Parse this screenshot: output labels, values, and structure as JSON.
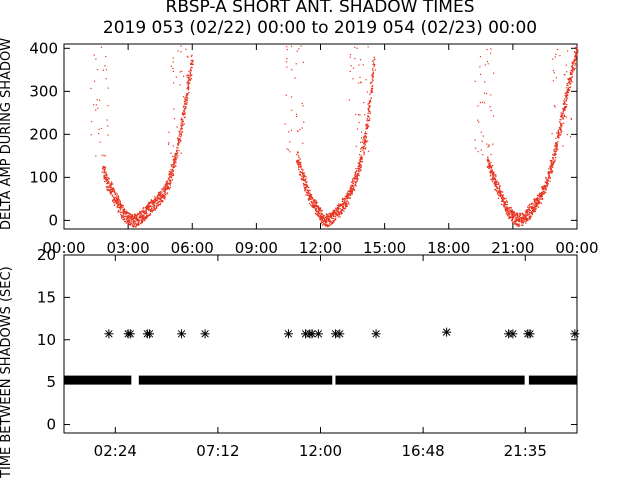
{
  "title": "RBSP-A SHORT ANT. SHADOW TIMES",
  "subtitle": "2019 053 (02/22) 00:00 to 2019 054 (02/23) 00:00",
  "colors": {
    "trace": "#e8321e",
    "axes": "#000000",
    "background": "#ffffff"
  },
  "chart_data": [
    {
      "type": "scatter",
      "ylabel": "DELTA AMP DURING SHADOW",
      "ylim": [
        -20,
        410
      ],
      "xlim": [
        0,
        24
      ],
      "x_tick_labels": [
        "00:00",
        "03:00",
        "06:00",
        "09:00",
        "12:00",
        "15:00",
        "18:00",
        "21:00",
        "00:00"
      ],
      "y_ticks": [
        0,
        100,
        200,
        300,
        400
      ],
      "grid": false,
      "description_of_series": "red points forming V-shaped arcs near perigee",
      "series": [
        {
          "x": [
            1.8,
            2.0,
            2.2,
            2.4,
            2.6,
            2.8,
            3.0,
            3.2,
            3.4,
            3.6,
            3.8,
            4.0,
            4.2,
            4.4,
            4.6,
            4.8,
            5.0,
            5.2,
            5.4,
            5.6,
            5.8,
            6.0
          ],
          "y": [
            120,
            90,
            70,
            50,
            30,
            15,
            5,
            0,
            2,
            10,
            20,
            30,
            40,
            50,
            60,
            80,
            110,
            150,
            200,
            260,
            320,
            380
          ]
        },
        {
          "x": [
            10.9,
            11.1,
            11.3,
            11.5,
            11.7,
            11.9,
            12.1,
            12.3,
            12.5,
            12.7,
            12.9,
            13.1,
            13.3,
            13.5,
            13.7,
            13.9,
            14.1,
            14.3,
            14.5
          ],
          "y": [
            150,
            110,
            80,
            55,
            35,
            18,
            6,
            1,
            5,
            15,
            28,
            42,
            58,
            80,
            110,
            150,
            200,
            280,
            380
          ]
        },
        {
          "x": [
            19.8,
            20.0,
            20.2,
            20.4,
            20.6,
            20.8,
            21.0,
            21.2,
            21.4,
            21.6,
            21.8,
            22.0,
            22.2,
            22.4,
            22.6,
            22.8,
            23.0,
            23.2,
            23.4,
            23.6,
            23.8,
            24.0
          ],
          "y": [
            140,
            110,
            85,
            60,
            40,
            22,
            8,
            2,
            4,
            12,
            24,
            36,
            50,
            70,
            95,
            130,
            170,
            220,
            270,
            320,
            360,
            400
          ]
        }
      ]
    },
    {
      "type": "scatter",
      "ylabel": "TIME BETWEEN SHADOWS (SEC)",
      "ylim": [
        -1,
        20
      ],
      "xlim": [
        0,
        24
      ],
      "x_tick_labels": [
        "02:24",
        "07:12",
        "12:00",
        "16:48",
        "21:35"
      ],
      "x_tick_values": [
        2.4,
        7.2,
        12.0,
        16.8,
        21.58
      ],
      "y_ticks": [
        0,
        5,
        10,
        15,
        20
      ],
      "grid": false,
      "baseline_value": 5.3,
      "baseline_gaps": [
        [
          3.15,
          3.5
        ],
        [
          12.55,
          12.7
        ],
        [
          21.55,
          21.75
        ]
      ],
      "star_points": [
        {
          "x": 2.1,
          "y": 10.7
        },
        {
          "x": 3.0,
          "y": 10.7
        },
        {
          "x": 3.1,
          "y": 10.7
        },
        {
          "x": 3.9,
          "y": 10.7
        },
        {
          "x": 4.0,
          "y": 10.7
        },
        {
          "x": 5.5,
          "y": 10.7
        },
        {
          "x": 6.6,
          "y": 10.7
        },
        {
          "x": 10.5,
          "y": 10.7
        },
        {
          "x": 11.3,
          "y": 10.7
        },
        {
          "x": 11.5,
          "y": 10.7
        },
        {
          "x": 11.6,
          "y": 10.7
        },
        {
          "x": 11.9,
          "y": 10.7
        },
        {
          "x": 12.7,
          "y": 10.7
        },
        {
          "x": 12.9,
          "y": 10.7
        },
        {
          "x": 14.6,
          "y": 10.7
        },
        {
          "x": 17.9,
          "y": 10.9
        },
        {
          "x": 20.8,
          "y": 10.7
        },
        {
          "x": 21.0,
          "y": 10.7
        },
        {
          "x": 21.7,
          "y": 10.7
        },
        {
          "x": 21.8,
          "y": 10.7
        },
        {
          "x": 23.9,
          "y": 10.7
        }
      ]
    }
  ]
}
